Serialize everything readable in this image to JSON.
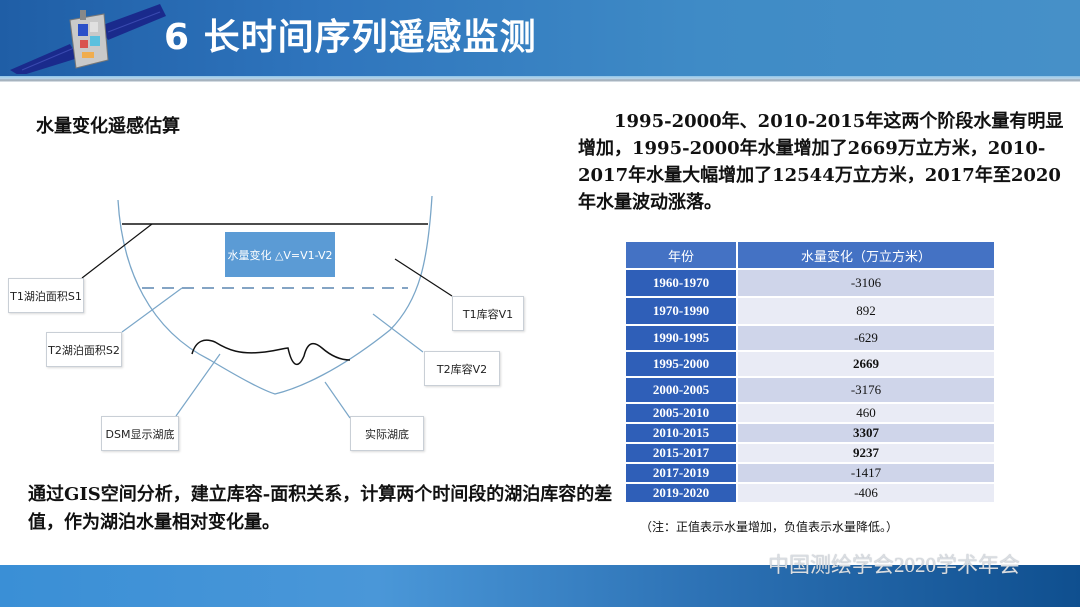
{
  "header": {
    "title": "6 长时间序列遥感监测",
    "logo_icon": "satellite-icon"
  },
  "left": {
    "section_title": "水量变化遥感估算",
    "diagram": {
      "delta_box": "水量变化 △V=V1-V2",
      "labels": {
        "t1_area": "T1湖泊面积S1",
        "t2_area": "T2湖泊面积S2",
        "t1_volume": "T1库容V1",
        "t2_volume": "T2库容V2",
        "dsm_bottom": "DSM显示湖底",
        "actual_bottom": "实际湖底"
      }
    },
    "method_text": "通过GIS空间分析，建立库容-面积关系，计算两个时间段的湖泊库容的差值，作为湖泊水量相对变化量。"
  },
  "right": {
    "summary": "1995-2000年、2010-2015年这两个阶段水量有明显增加，1995-2000年水量增加了2669万立方米，2010-2017年水量大幅增加了12544万立方米，2017年至2020年水量波动涨落。",
    "table": {
      "headers": [
        "年份",
        "水量变化（万立方米）"
      ],
      "rows": [
        {
          "period": "1960-1970",
          "value": "-3106",
          "bold": false
        },
        {
          "period": "1970-1990",
          "value": "892",
          "bold": false
        },
        {
          "period": "1990-1995",
          "value": "-629",
          "bold": false
        },
        {
          "period": "1995-2000",
          "value": "2669",
          "bold": true
        },
        {
          "period": "2000-2005",
          "value": "-3176",
          "bold": false
        },
        {
          "period": "2005-2010",
          "value": "460",
          "bold": false
        },
        {
          "period": "2010-2015",
          "value": "3307",
          "bold": true
        },
        {
          "period": "2015-2017",
          "value": "9237",
          "bold": true
        },
        {
          "period": "2017-2019",
          "value": "-1417",
          "bold": false
        },
        {
          "period": "2019-2020",
          "value": "-406",
          "bold": false
        }
      ]
    },
    "note": "（注：正值表示水量增加，负值表示水量降低。）"
  },
  "footer": {
    "brand": "中国测绘学会2020学术年会"
  },
  "colors": {
    "header_blue": "#2f75bd",
    "table_header": "#4472c4",
    "table_year_cell": "#2f5fb8",
    "table_row_odd": "#cfd5ea",
    "table_row_even": "#e9ebf5",
    "delta_box": "#5b9bd5"
  }
}
